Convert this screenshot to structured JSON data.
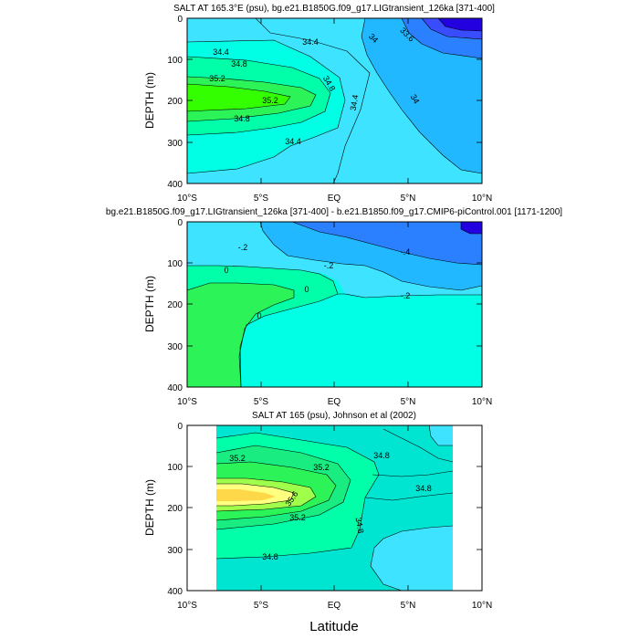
{
  "figure": {
    "xlabel": "Latitude"
  },
  "chart_data": [
    {
      "type": "heatmap",
      "title": "SALT AT 165.3°E (psu), bg.e21.B1850G.f09_g17.LIGtransient_126ka [371-400]",
      "xlabel": "",
      "ylabel": "DEPTH (m)",
      "xlim": [
        -10,
        10
      ],
      "ylim": [
        400,
        0
      ],
      "x_ticks": [
        "10°S",
        "5°S",
        "EQ",
        "5°N",
        "10°N"
      ],
      "y_ticks": [
        "0",
        "100",
        "200",
        "300",
        "400"
      ],
      "contour_labels": [
        "34.4",
        "34.8",
        "35.2",
        "35.2",
        "34.8",
        "34.4",
        "34.4",
        "34.8",
        "34.4",
        "34",
        "33.6",
        "34"
      ],
      "contour_levels": [
        33.6,
        34.0,
        34.4,
        34.8,
        35.2
      ]
    },
    {
      "type": "heatmap",
      "title": "bg.e21.B1850G.f09_g17.LIGtransient_126ka [371-400] - b.e21.B1850.f09_g17.CMIP6-piControl.001 [1171-1200]",
      "xlabel": "",
      "ylabel": "DEPTH (m)",
      "xlim": [
        -10,
        10
      ],
      "ylim": [
        400,
        0
      ],
      "x_ticks": [
        "10°S",
        "5°S",
        "EQ",
        "5°N",
        "10°N"
      ],
      "y_ticks": [
        "0",
        "100",
        "200",
        "300",
        "400"
      ],
      "contour_labels": [
        "-.2",
        "-.2",
        "-.4",
        "0",
        "0",
        "-.2",
        "0"
      ],
      "contour_levels": [
        -0.4,
        -0.2,
        0.0
      ]
    },
    {
      "type": "heatmap",
      "title": "SALT AT 165 (psu), Johnson et al (2002)",
      "xlabel": "Latitude",
      "ylabel": "DEPTH (m)",
      "xlim": [
        -10,
        10
      ],
      "ylim": [
        400,
        0
      ],
      "data_xlim": [
        -8,
        8
      ],
      "x_ticks": [
        "10°S",
        "5°S",
        "EQ",
        "5°N",
        "10°N"
      ],
      "y_ticks": [
        "0",
        "100",
        "200",
        "300",
        "400"
      ],
      "contour_labels": [
        "35.2",
        "35.2",
        "34.8",
        "34.8",
        "35.6",
        "35.2",
        "34.8",
        "34.8"
      ],
      "contour_levels": [
        34.8,
        35.2,
        35.6
      ]
    }
  ]
}
